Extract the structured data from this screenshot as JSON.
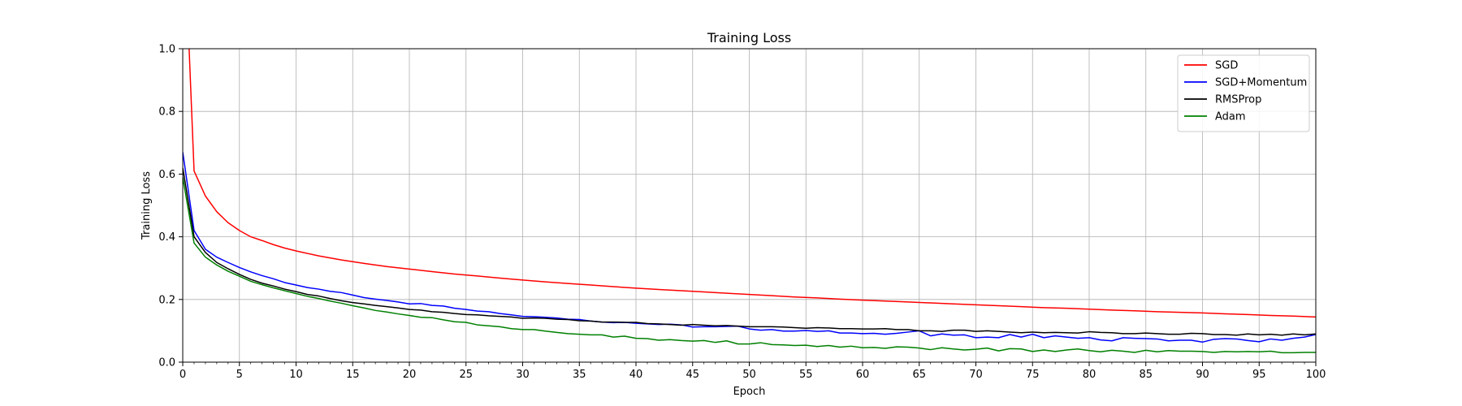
{
  "chart_data": {
    "type": "line",
    "title": "Training Loss",
    "xlabel": "Epoch",
    "ylabel": "Training Loss",
    "xlim": [
      0,
      100
    ],
    "ylim": [
      0.0,
      1.0
    ],
    "x_ticks": [
      0,
      5,
      10,
      15,
      20,
      25,
      30,
      35,
      40,
      45,
      50,
      55,
      60,
      65,
      70,
      75,
      80,
      85,
      90,
      95,
      100
    ],
    "x_tick_labels": [
      "0",
      "5",
      "10",
      "15",
      "20",
      "25",
      "30",
      "35",
      "40",
      "45",
      "50",
      "55",
      "60",
      "65",
      "70",
      "75",
      "80",
      "85",
      "90",
      "95",
      "100"
    ],
    "y_ticks": [
      0.0,
      0.2,
      0.4,
      0.6,
      0.8,
      1.0
    ],
    "y_tick_labels": [
      "0.0",
      "0.2",
      "0.4",
      "0.6",
      "0.8",
      "1.0"
    ],
    "grid": true,
    "legend_position": "top-right",
    "series": [
      {
        "name": "SGD",
        "color": "#ff0000",
        "x": [
          0,
          1,
          2,
          3,
          4,
          5,
          6,
          7,
          8,
          9,
          10,
          12,
          14,
          16,
          18,
          20,
          22,
          24,
          26,
          28,
          30,
          32,
          34,
          36,
          38,
          40,
          42,
          44,
          46,
          48,
          50,
          52,
          54,
          56,
          58,
          60,
          62,
          64,
          66,
          68,
          70,
          72,
          74,
          76,
          78,
          80,
          82,
          84,
          86,
          88,
          90,
          92,
          94,
          96,
          98,
          100
        ],
        "y": [
          1.5,
          0.61,
          0.53,
          0.48,
          0.445,
          0.42,
          0.4,
          0.388,
          0.375,
          0.364,
          0.355,
          0.339,
          0.326,
          0.315,
          0.305,
          0.297,
          0.289,
          0.281,
          0.275,
          0.268,
          0.262,
          0.256,
          0.251,
          0.246,
          0.241,
          0.236,
          0.232,
          0.228,
          0.224,
          0.22,
          0.216,
          0.212,
          0.208,
          0.205,
          0.201,
          0.198,
          0.195,
          0.192,
          0.189,
          0.186,
          0.183,
          0.18,
          0.177,
          0.174,
          0.172,
          0.169,
          0.166,
          0.164,
          0.161,
          0.159,
          0.157,
          0.154,
          0.152,
          0.149,
          0.147,
          0.144
        ]
      },
      {
        "name": "SGD+Momentum",
        "color": "#0000ff",
        "x": [
          0,
          1,
          2,
          3,
          4,
          5,
          6,
          7,
          8,
          9,
          10,
          11,
          12,
          13,
          14,
          15,
          16,
          17,
          18,
          19,
          20,
          21,
          22,
          23,
          24,
          25,
          26,
          27,
          28,
          29,
          30,
          31,
          32,
          33,
          34,
          35,
          36,
          37,
          38,
          39,
          40,
          41,
          42,
          43,
          44,
          45,
          46,
          47,
          48,
          49,
          50,
          51,
          52,
          53,
          54,
          55,
          56,
          57,
          58,
          59,
          60,
          61,
          62,
          63,
          64,
          65,
          66,
          67,
          68,
          69,
          70,
          71,
          72,
          73,
          74,
          75,
          76,
          77,
          78,
          79,
          80,
          81,
          82,
          83,
          84,
          85,
          86,
          87,
          88,
          89,
          90,
          91,
          92,
          93,
          94,
          95,
          96,
          97,
          98,
          99,
          100
        ],
        "y": [
          0.67,
          0.42,
          0.36,
          0.335,
          0.318,
          0.302,
          0.288,
          0.276,
          0.266,
          0.254,
          0.246,
          0.238,
          0.233,
          0.226,
          0.222,
          0.214,
          0.206,
          0.201,
          0.197,
          0.192,
          0.186,
          0.187,
          0.181,
          0.179,
          0.172,
          0.168,
          0.163,
          0.161,
          0.155,
          0.151,
          0.146,
          0.145,
          0.143,
          0.141,
          0.137,
          0.136,
          0.131,
          0.128,
          0.126,
          0.127,
          0.124,
          0.122,
          0.12,
          0.121,
          0.119,
          0.112,
          0.113,
          0.113,
          0.114,
          0.115,
          0.106,
          0.102,
          0.104,
          0.099,
          0.099,
          0.101,
          0.098,
          0.1,
          0.093,
          0.093,
          0.091,
          0.092,
          0.089,
          0.092,
          0.096,
          0.1,
          0.084,
          0.09,
          0.086,
          0.087,
          0.078,
          0.08,
          0.078,
          0.088,
          0.08,
          0.089,
          0.078,
          0.084,
          0.08,
          0.076,
          0.078,
          0.071,
          0.068,
          0.078,
          0.076,
          0.075,
          0.074,
          0.068,
          0.07,
          0.07,
          0.064,
          0.073,
          0.075,
          0.074,
          0.069,
          0.065,
          0.074,
          0.07,
          0.076,
          0.08,
          0.088
        ]
      },
      {
        "name": "RMSProp",
        "color": "#000000",
        "x": [
          0,
          1,
          2,
          3,
          4,
          5,
          6,
          7,
          8,
          9,
          10,
          11,
          12,
          13,
          14,
          15,
          16,
          17,
          18,
          19,
          20,
          21,
          22,
          23,
          24,
          25,
          26,
          27,
          28,
          29,
          30,
          31,
          32,
          33,
          34,
          35,
          36,
          37,
          38,
          39,
          40,
          41,
          42,
          43,
          44,
          45,
          46,
          47,
          48,
          49,
          50,
          51,
          52,
          53,
          54,
          55,
          56,
          57,
          58,
          59,
          60,
          61,
          62,
          63,
          64,
          65,
          66,
          67,
          68,
          69,
          70,
          71,
          72,
          73,
          74,
          75,
          76,
          77,
          78,
          79,
          80,
          81,
          82,
          83,
          84,
          85,
          86,
          87,
          88,
          89,
          90,
          91,
          92,
          93,
          94,
          95,
          96,
          97,
          98,
          99,
          100
        ],
        "y": [
          0.62,
          0.4,
          0.35,
          0.318,
          0.298,
          0.28,
          0.264,
          0.252,
          0.243,
          0.233,
          0.225,
          0.216,
          0.211,
          0.203,
          0.196,
          0.19,
          0.186,
          0.181,
          0.177,
          0.173,
          0.168,
          0.166,
          0.161,
          0.159,
          0.155,
          0.152,
          0.151,
          0.148,
          0.146,
          0.144,
          0.14,
          0.141,
          0.14,
          0.137,
          0.136,
          0.132,
          0.131,
          0.128,
          0.128,
          0.127,
          0.127,
          0.123,
          0.122,
          0.12,
          0.118,
          0.12,
          0.118,
          0.116,
          0.117,
          0.115,
          0.113,
          0.113,
          0.113,
          0.112,
          0.11,
          0.108,
          0.11,
          0.109,
          0.107,
          0.107,
          0.106,
          0.106,
          0.107,
          0.104,
          0.104,
          0.1,
          0.1,
          0.098,
          0.102,
          0.102,
          0.098,
          0.1,
          0.098,
          0.096,
          0.094,
          0.096,
          0.094,
          0.095,
          0.094,
          0.093,
          0.097,
          0.095,
          0.094,
          0.091,
          0.091,
          0.093,
          0.091,
          0.089,
          0.089,
          0.092,
          0.091,
          0.088,
          0.088,
          0.086,
          0.09,
          0.087,
          0.089,
          0.086,
          0.09,
          0.087,
          0.09
        ]
      },
      {
        "name": "Adam",
        "color": "#008000",
        "x": [
          0,
          1,
          2,
          3,
          4,
          5,
          6,
          7,
          8,
          9,
          10,
          11,
          12,
          13,
          14,
          15,
          16,
          17,
          18,
          19,
          20,
          21,
          22,
          23,
          24,
          25,
          26,
          27,
          28,
          29,
          30,
          31,
          32,
          33,
          34,
          35,
          36,
          37,
          38,
          39,
          40,
          41,
          42,
          43,
          44,
          45,
          46,
          47,
          48,
          49,
          50,
          51,
          52,
          53,
          54,
          55,
          56,
          57,
          58,
          59,
          60,
          61,
          62,
          63,
          64,
          65,
          66,
          67,
          68,
          69,
          70,
          71,
          72,
          73,
          74,
          75,
          76,
          77,
          78,
          79,
          80,
          81,
          82,
          83,
          84,
          85,
          86,
          87,
          88,
          89,
          90,
          91,
          92,
          93,
          94,
          95,
          96,
          97,
          98,
          99,
          100
        ],
        "y": [
          0.59,
          0.38,
          0.335,
          0.31,
          0.29,
          0.274,
          0.258,
          0.247,
          0.237,
          0.228,
          0.219,
          0.21,
          0.203,
          0.195,
          0.188,
          0.18,
          0.173,
          0.165,
          0.16,
          0.154,
          0.149,
          0.143,
          0.142,
          0.135,
          0.129,
          0.127,
          0.119,
          0.116,
          0.113,
          0.107,
          0.104,
          0.104,
          0.099,
          0.095,
          0.091,
          0.089,
          0.087,
          0.087,
          0.08,
          0.083,
          0.076,
          0.075,
          0.07,
          0.072,
          0.069,
          0.067,
          0.069,
          0.063,
          0.068,
          0.058,
          0.058,
          0.062,
          0.056,
          0.055,
          0.053,
          0.054,
          0.05,
          0.053,
          0.048,
          0.051,
          0.046,
          0.047,
          0.044,
          0.049,
          0.048,
          0.045,
          0.04,
          0.046,
          0.042,
          0.039,
          0.041,
          0.045,
          0.036,
          0.043,
          0.042,
          0.034,
          0.039,
          0.034,
          0.039,
          0.042,
          0.037,
          0.033,
          0.038,
          0.035,
          0.031,
          0.038,
          0.033,
          0.037,
          0.035,
          0.035,
          0.034,
          0.031,
          0.034,
          0.033,
          0.034,
          0.033,
          0.035,
          0.03,
          0.03,
          0.031,
          0.031
        ]
      }
    ]
  }
}
